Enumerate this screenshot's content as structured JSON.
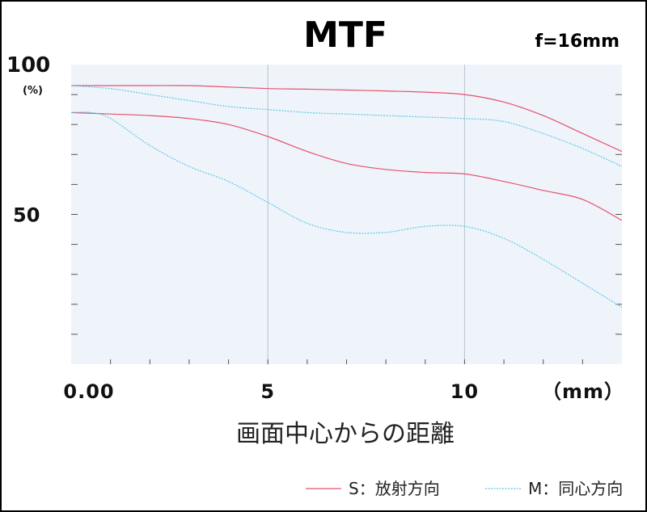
{
  "colors": {
    "plot_background": "#eef4fa",
    "grid_line": "#b9c2cc",
    "minor_tick": "#555555",
    "sagittal": "#e8506c",
    "meridional": "#5ec8e8"
  },
  "chart_data": {
    "type": "line",
    "title": "MTF",
    "subtitle": "f=16mm",
    "xlabel": "画面中心からの距離",
    "x_unit": "（mm）",
    "y_unit": "(%)",
    "xlim": [
      0,
      14
    ],
    "ylim": [
      0,
      100
    ],
    "x_ticks": [
      {
        "value": 0,
        "label": "0.00"
      },
      {
        "value": 5,
        "label": "5"
      },
      {
        "value": 10,
        "label": "10"
      }
    ],
    "y_ticks": [
      {
        "value": 100,
        "label": "100"
      },
      {
        "value": 50,
        "label": "50"
      }
    ],
    "grid": true,
    "legend_position": "bottom-right",
    "series": [
      {
        "name": "S：放射方向",
        "style": "solid",
        "color_key": "sagittal",
        "x": [
          0,
          1,
          2,
          3,
          4,
          5,
          6,
          7,
          8,
          9,
          10,
          11,
          12,
          13,
          14
        ],
        "y": [
          93,
          93,
          93,
          93,
          92.5,
          92,
          91.8,
          91.5,
          91.2,
          90.8,
          90,
          87.5,
          83,
          77,
          71
        ]
      },
      {
        "name": "",
        "style": "solid",
        "color_key": "sagittal",
        "x": [
          0,
          1,
          2,
          3,
          4,
          5,
          6,
          7,
          8,
          9,
          10,
          11,
          12,
          13,
          14
        ],
        "y": [
          84,
          83.5,
          83,
          82,
          80,
          76,
          71,
          67,
          65,
          64,
          63.5,
          61,
          58,
          55,
          48
        ]
      },
      {
        "name": "M：同心方向",
        "style": "dashed",
        "color_key": "meridional",
        "x": [
          0,
          1,
          2,
          3,
          4,
          5,
          6,
          7,
          8,
          9,
          10,
          11,
          12,
          13,
          14
        ],
        "y": [
          93,
          92,
          90,
          88,
          86,
          85,
          84,
          83.5,
          83,
          82.5,
          82,
          81,
          77,
          72,
          66
        ]
      },
      {
        "name": "",
        "style": "dashed",
        "color_key": "meridional",
        "x": [
          0,
          0.5,
          1,
          2,
          3,
          4,
          5,
          6,
          7,
          8,
          9,
          10,
          11,
          12,
          13,
          14
        ],
        "y": [
          84,
          84,
          82,
          73,
          66,
          61,
          54,
          47,
          44,
          44,
          46,
          46,
          42,
          35,
          27,
          19
        ]
      }
    ]
  }
}
